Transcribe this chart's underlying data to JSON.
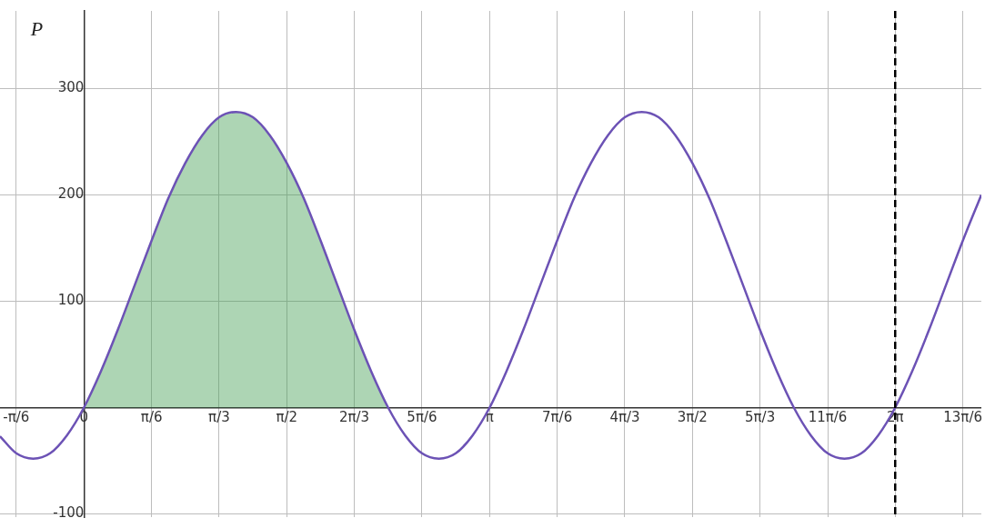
{
  "chart_data": {
    "type": "line",
    "ylabel": "P",
    "xlim": [
      -0.65,
      6.95
    ],
    "ylim": [
      -103,
      373
    ],
    "xticks": [
      {
        "value": -0.524,
        "label": "-π/6"
      },
      {
        "value": 0,
        "label": "0"
      },
      {
        "value": 0.524,
        "label": "π/6"
      },
      {
        "value": 1.047,
        "label": "π/3"
      },
      {
        "value": 1.571,
        "label": "π/2"
      },
      {
        "value": 2.094,
        "label": "2π/3"
      },
      {
        "value": 2.618,
        "label": "5π/6"
      },
      {
        "value": 3.142,
        "label": "π"
      },
      {
        "value": 3.665,
        "label": "7π/6"
      },
      {
        "value": 4.189,
        "label": "4π/3"
      },
      {
        "value": 4.712,
        "label": "3π/2"
      },
      {
        "value": 5.236,
        "label": "5π/3"
      },
      {
        "value": 5.76,
        "label": "11π/6"
      },
      {
        "value": 6.283,
        "label": "2π"
      },
      {
        "value": 6.807,
        "label": "13π/6"
      }
    ],
    "yticks": [
      -100,
      {
        "value": 0,
        "label": null
      },
      100,
      200,
      300
    ],
    "grid": true,
    "legend": false,
    "marker": "none",
    "line_style": "solid",
    "series": [
      {
        "type": "area",
        "color": "#3c9a4c",
        "x": [
          0,
          0.131,
          0.262,
          0.393,
          0.524,
          0.654,
          0.785,
          0.916,
          1.047,
          1.178,
          1.309,
          1.44,
          1.571,
          1.702,
          1.833,
          1.963,
          2.094,
          2.225,
          2.356
        ],
        "values": [
          0,
          34,
          73,
          115,
          157,
          197,
          230,
          256,
          273,
          278,
          273,
          256,
          230,
          197,
          157,
          115,
          73,
          34,
          0
        ]
      },
      {
        "type": "line",
        "color": "#6c52b5",
        "x": [
          -0.65,
          -0.524,
          -0.393,
          -0.262,
          -0.131,
          0,
          0.131,
          0.262,
          0.393,
          0.524,
          0.654,
          0.785,
          0.916,
          1.047,
          1.178,
          1.309,
          1.44,
          1.571,
          1.702,
          1.833,
          1.963,
          2.094,
          2.225,
          2.356,
          2.487,
          2.618,
          2.749,
          2.88,
          3.011,
          3.142,
          3.272,
          3.403,
          3.534,
          3.665,
          3.796,
          3.927,
          4.058,
          4.189,
          4.32,
          4.451,
          4.581,
          4.712,
          4.843,
          4.974,
          5.105,
          5.236,
          5.367,
          5.498,
          5.629,
          5.76,
          5.89,
          6.021,
          6.152,
          6.283,
          6.414,
          6.545,
          6.676,
          6.807,
          6.95
        ],
        "values": [
          -27,
          -43,
          -48,
          -43,
          -26,
          0,
          34,
          73,
          115,
          157,
          197,
          230,
          256,
          273,
          278,
          273,
          256,
          230,
          197,
          157,
          115,
          73,
          34,
          0,
          -26,
          -43,
          -48,
          -43,
          -26,
          0,
          34,
          73,
          115,
          157,
          197,
          230,
          256,
          273,
          278,
          273,
          256,
          230,
          197,
          157,
          115,
          73,
          34,
          0,
          -26,
          -43,
          -48,
          -43,
          -26,
          0,
          34,
          73,
          115,
          157,
          200
        ]
      }
    ],
    "ref_lines": [
      {
        "axis": "x",
        "value": 6.283,
        "color": "#000000",
        "line_style": "dashed"
      }
    ]
  }
}
